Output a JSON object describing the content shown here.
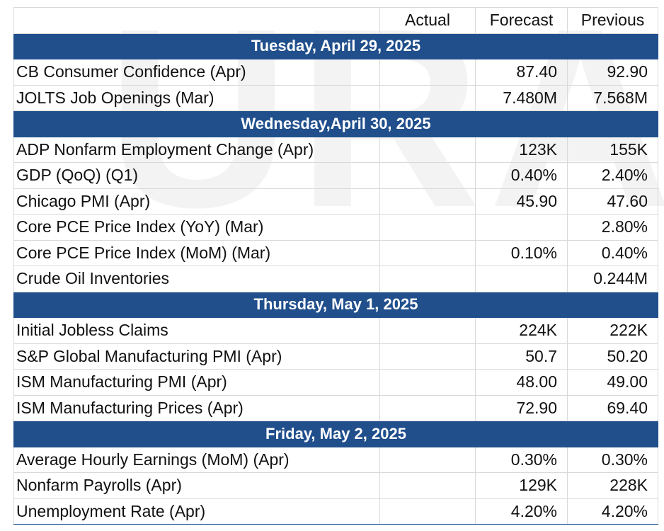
{
  "header": {
    "event": "",
    "actual": "Actual",
    "forecast": "Forecast",
    "previous": "Previous"
  },
  "days": [
    {
      "title": "Tuesday, April 29, 2025",
      "events": [
        {
          "name": "CB Consumer Confidence (Apr)",
          "actual": "",
          "forecast": "87.40",
          "previous": "92.90"
        },
        {
          "name": "JOLTS Job Openings (Mar)",
          "actual": "",
          "forecast": "7.480M",
          "previous": "7.568M"
        }
      ]
    },
    {
      "title": "Wednesday,April 30, 2025",
      "events": [
        {
          "name": "ADP Nonfarm Employment Change (Apr)",
          "actual": "",
          "forecast": "123K",
          "previous": "155K"
        },
        {
          "name": "GDP (QoQ) (Q1)",
          "actual": "",
          "forecast": "0.40%",
          "previous": "2.40%"
        },
        {
          "name": "Chicago PMI (Apr)",
          "actual": "",
          "forecast": "45.90",
          "previous": "47.60"
        },
        {
          "name": "Core PCE Price Index (YoY) (Mar)",
          "actual": "",
          "forecast": "",
          "previous": "2.80%"
        },
        {
          "name": "Core PCE Price Index (MoM) (Mar)",
          "actual": "",
          "forecast": "0.10%",
          "previous": "0.40%"
        },
        {
          "name": "Crude Oil Inventories",
          "actual": "",
          "forecast": "",
          "previous": "0.244M"
        }
      ]
    },
    {
      "title": "Thursday, May 1, 2025",
      "events": [
        {
          "name": "Initial Jobless Claims",
          "actual": "",
          "forecast": "224K",
          "previous": "222K"
        },
        {
          "name": "S&P Global Manufacturing PMI (Apr)",
          "actual": "",
          "forecast": "50.7",
          "previous": "50.20"
        },
        {
          "name": "ISM Manufacturing PMI (Apr)",
          "actual": "",
          "forecast": "48.00",
          "previous": "49.00"
        },
        {
          "name": "ISM Manufacturing Prices (Apr)",
          "actual": "",
          "forecast": "72.90",
          "previous": "69.40"
        }
      ]
    },
    {
      "title": "Friday, May 2, 2025",
      "events": [
        {
          "name": "Average Hourly Earnings (MoM) (Apr)",
          "actual": "",
          "forecast": "0.30%",
          "previous": "0.30%"
        },
        {
          "name": "Nonfarm Payrolls (Apr)",
          "actual": "",
          "forecast": "129K",
          "previous": "228K"
        },
        {
          "name": "Unemployment Rate (Apr)",
          "actual": "",
          "forecast": "4.20%",
          "previous": "4.20%"
        }
      ]
    }
  ],
  "colors": {
    "day_header_bg": "#204f8c",
    "day_header_text": "#ffffff",
    "grid": "#d9d9d9"
  }
}
